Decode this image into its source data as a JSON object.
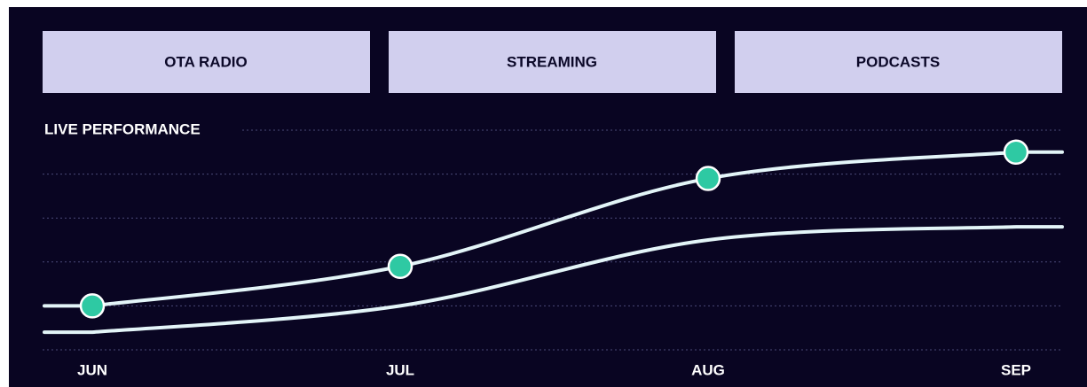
{
  "tabs": [
    "OTA RADIO",
    "STREAMING",
    "PODCASTS"
  ],
  "chart_data": {
    "type": "line",
    "title": "LIVE PERFORMANCE",
    "categories": [
      "JUN",
      "JUL",
      "AUG",
      "SEP"
    ],
    "series": [
      {
        "color": "#e3f5f8",
        "marker_color": "#2ec9a3",
        "markers": true,
        "values": [
          1.0,
          1.9,
          3.9,
          4.5
        ]
      },
      {
        "color": "#e3f5f8",
        "markers": false,
        "values": [
          0.4,
          1.0,
          2.5,
          2.8
        ]
      }
    ],
    "ylim": [
      0,
      5
    ],
    "yticks": [
      0,
      1,
      2,
      3,
      4,
      5
    ],
    "grid": true
  }
}
